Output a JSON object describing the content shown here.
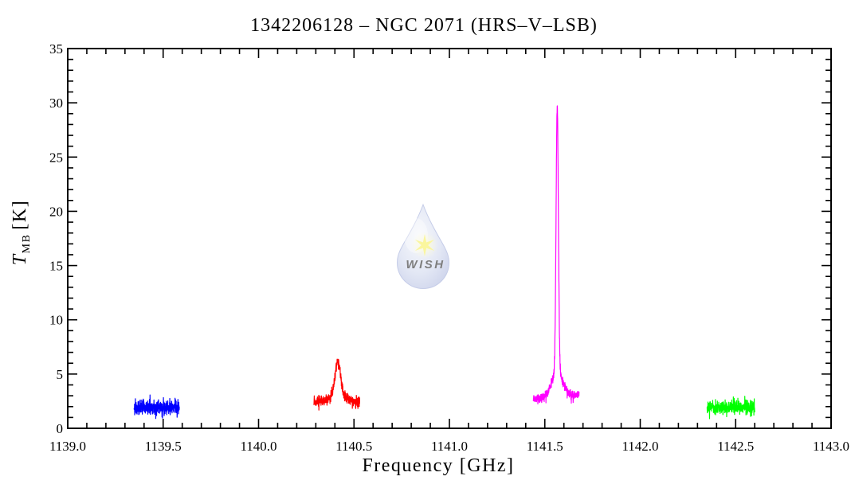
{
  "chart_data": {
    "type": "line",
    "title": "1342206128 – NGC 2071 (HRS–V–LSB)",
    "xlabel": "Frequency [GHz]",
    "ylabel": "T_MB [K]",
    "ylabel_parts": {
      "symbol": "T",
      "subscript": "MB",
      "unit": "[K]"
    },
    "xlim": [
      1139.0,
      1143.0
    ],
    "ylim": [
      0,
      35
    ],
    "grid": false,
    "legend": null,
    "axis_color": "#000000",
    "xticks": {
      "major_values": [
        1139.0,
        1139.5,
        1140.0,
        1140.5,
        1141.0,
        1141.5,
        1142.0,
        1142.5,
        1143.0
      ],
      "major_labels": [
        "1139.0",
        "1139.5",
        "1140.0",
        "1140.5",
        "1141.0",
        "1141.5",
        "1142.0",
        "1142.5",
        "1143.0"
      ],
      "minor_step": 0.1
    },
    "yticks": {
      "major_values": [
        0,
        5,
        10,
        15,
        20,
        25,
        30,
        35
      ],
      "major_labels": [
        "0",
        "5",
        "10",
        "15",
        "20",
        "25",
        "30",
        "35"
      ],
      "minor_step": 1
    },
    "series": [
      {
        "name": "blue",
        "color": "#0000ff",
        "x_range": [
          1139.347,
          1139.585
        ],
        "baseline": [
          1.9,
          1.9
        ],
        "noise_sigma": 0.35,
        "points": 380,
        "peaks": []
      },
      {
        "name": "red",
        "color": "#ff0000",
        "x_range": [
          1140.29,
          1140.53
        ],
        "baseline": [
          2.35,
          2.4
        ],
        "noise_sigma": 0.27,
        "points": 380,
        "peaks": [
          {
            "center": 1140.415,
            "amplitude": 3.2,
            "fwhm": 0.034
          },
          {
            "center": 1140.415,
            "amplitude": 0.6,
            "fwhm": 0.11
          }
        ]
      },
      {
        "name": "magenta",
        "color": "#ff00ff",
        "x_range": [
          1141.44,
          1141.68
        ],
        "baseline": [
          2.7,
          3.1
        ],
        "noise_sigma": 0.22,
        "points": 420,
        "peaks": [
          {
            "center": 1141.565,
            "amplitude": 24.4,
            "fwhm": 0.014
          },
          {
            "center": 1141.565,
            "amplitude": 2.4,
            "fwhm": 0.065
          }
        ]
      },
      {
        "name": "green",
        "color": "#00ff00",
        "x_range": [
          1142.35,
          1142.6
        ],
        "baseline": [
          1.9,
          1.95
        ],
        "noise_sigma": 0.33,
        "points": 380,
        "peaks": []
      }
    ],
    "visible_peaks": [
      {
        "series": "red",
        "frequency_ghz": 1140.42,
        "tmb_k": 6.2
      },
      {
        "series": "magenta",
        "frequency_ghz": 1141.57,
        "tmb_k": 30.0
      }
    ]
  },
  "watermark": {
    "text": "WISH",
    "text_color": "#f2e73b",
    "star_color": "#f6ee3f",
    "drop_center_color": "#eef1fa",
    "drop_edge_color": "#96a3d6",
    "opacity": 0.5
  }
}
